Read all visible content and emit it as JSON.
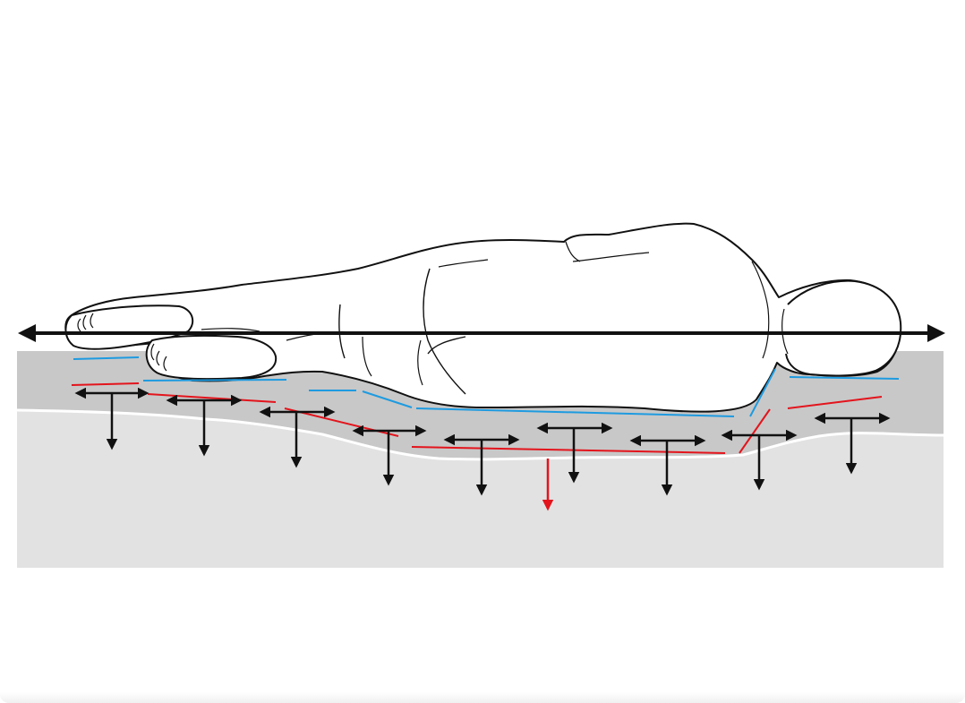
{
  "title": "",
  "colors": {
    "mattress_top": "#c8c8c8",
    "mattress_bottom": "#e2e2e2",
    "body_fill": "#ffffff",
    "outline": "#111111",
    "blue_line": "#1e9be0",
    "red_line": "#e3141c",
    "force_arrow": "#111111",
    "red_arrow": "#e3141c"
  },
  "icons": {
    "axis": "double-headed-arrow",
    "support": "t-shaped-force-arrow"
  }
}
